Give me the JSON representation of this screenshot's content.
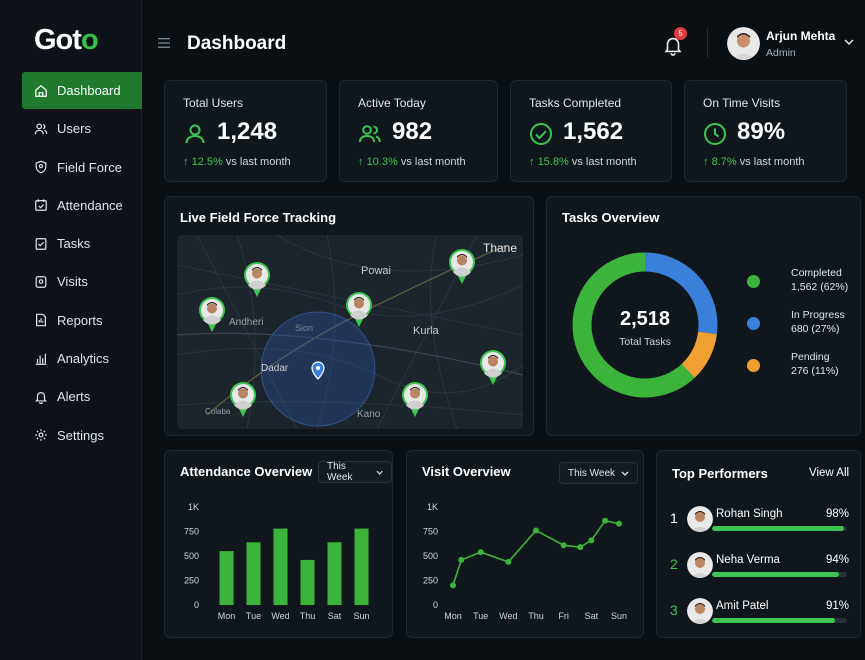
{
  "brand": {
    "logo_main": "Got",
    "logo_accent": "o"
  },
  "sidebar": {
    "items": [
      {
        "label": "Dashboard",
        "icon": "home-icon",
        "active": true
      },
      {
        "label": "Users",
        "icon": "users-icon"
      },
      {
        "label": "Field Force",
        "icon": "location-shield-icon"
      },
      {
        "label": "Attendance",
        "icon": "calendar-check-icon"
      },
      {
        "label": "Tasks",
        "icon": "checklist-icon"
      },
      {
        "label": "Visits",
        "icon": "map-pin-icon"
      },
      {
        "label": "Reports",
        "icon": "report-icon"
      },
      {
        "label": "Analytics",
        "icon": "bar-chart-icon"
      },
      {
        "label": "Alerts",
        "icon": "bell-icon"
      },
      {
        "label": "Settings",
        "icon": "gear-icon"
      }
    ]
  },
  "header": {
    "title": "Dashboard",
    "notification_count": "5",
    "user_name": "Arjun Mehta",
    "user_role": "Admin"
  },
  "stats": [
    {
      "label": "Total Users",
      "value": "1,248",
      "trend": "12.5%",
      "trend_text": "vs last month",
      "icon": "user-icon"
    },
    {
      "label": "Active Today",
      "value": "982",
      "trend": "10.3%",
      "trend_text": "vs last month",
      "icon": "users-icon"
    },
    {
      "label": "Tasks Completed",
      "value": "1,562",
      "trend": "15.8%",
      "trend_text": "vs last month",
      "icon": "check-circle-icon"
    },
    {
      "label": "On Time Visits",
      "value": "89%",
      "trend": "8.7%",
      "trend_text": "vs last month",
      "icon": "clock-icon"
    }
  ],
  "tracking": {
    "title": "Live Field Force Tracking",
    "places": [
      "Thane",
      "Powai",
      "Andheri",
      "Kurla",
      "Dadar",
      "Kano",
      "Colaba",
      "Sion"
    ]
  },
  "tasks_overview": {
    "title": "Tasks Overview",
    "total": "2,518",
    "total_label": "Total Tasks",
    "segments": [
      {
        "name": "Completed",
        "value": "1,562 (62%)",
        "fraction": 0.62,
        "color": "#3cb43c"
      },
      {
        "name": "In Progress",
        "value": "680 (27%)",
        "fraction": 0.27,
        "color": "#3a7fd9"
      },
      {
        "name": "Pending",
        "value": "276 (11%)",
        "fraction": 0.11,
        "color": "#f0a030"
      }
    ]
  },
  "attendance": {
    "title": "Attendance Overview",
    "period": "This Week"
  },
  "visits": {
    "title": "Visit Overview",
    "period": "This Week"
  },
  "chart_data": [
    {
      "type": "bar",
      "title": "Attendance Overview",
      "categories": [
        "Mon",
        "Tue",
        "Wed",
        "Thu",
        "Sat",
        "Sun"
      ],
      "values": [
        550,
        640,
        780,
        460,
        640,
        780
      ],
      "ylim": [
        0,
        1000
      ],
      "yticks": [
        "0",
        "250",
        "500",
        "750",
        "1K"
      ],
      "color": "#3cb43c"
    },
    {
      "type": "line",
      "title": "Visit Overview",
      "categories": [
        "Mon",
        "Tue",
        "Wed",
        "Thu",
        "Fri",
        "Sat",
        "Sun"
      ],
      "values": [
        200,
        460,
        540,
        440,
        760,
        610,
        590,
        660,
        860,
        830
      ],
      "x": [
        0,
        0.3,
        1,
        2,
        3,
        4,
        4.6,
        5,
        5.5,
        6
      ],
      "ylim": [
        0,
        1000
      ],
      "yticks": [
        "0",
        "250",
        "500",
        "750",
        "1K"
      ],
      "color": "#3cb43c"
    }
  ],
  "performers": {
    "title": "Top Performers",
    "view_all": "View All",
    "items": [
      {
        "rank": "1",
        "name": "Rohan Singh",
        "pct": "98%",
        "fraction": 0.98
      },
      {
        "rank": "2",
        "name": "Neha Verma",
        "pct": "94%",
        "fraction": 0.94
      },
      {
        "rank": "3",
        "name": "Amit Patel",
        "pct": "91%",
        "fraction": 0.91
      }
    ]
  }
}
